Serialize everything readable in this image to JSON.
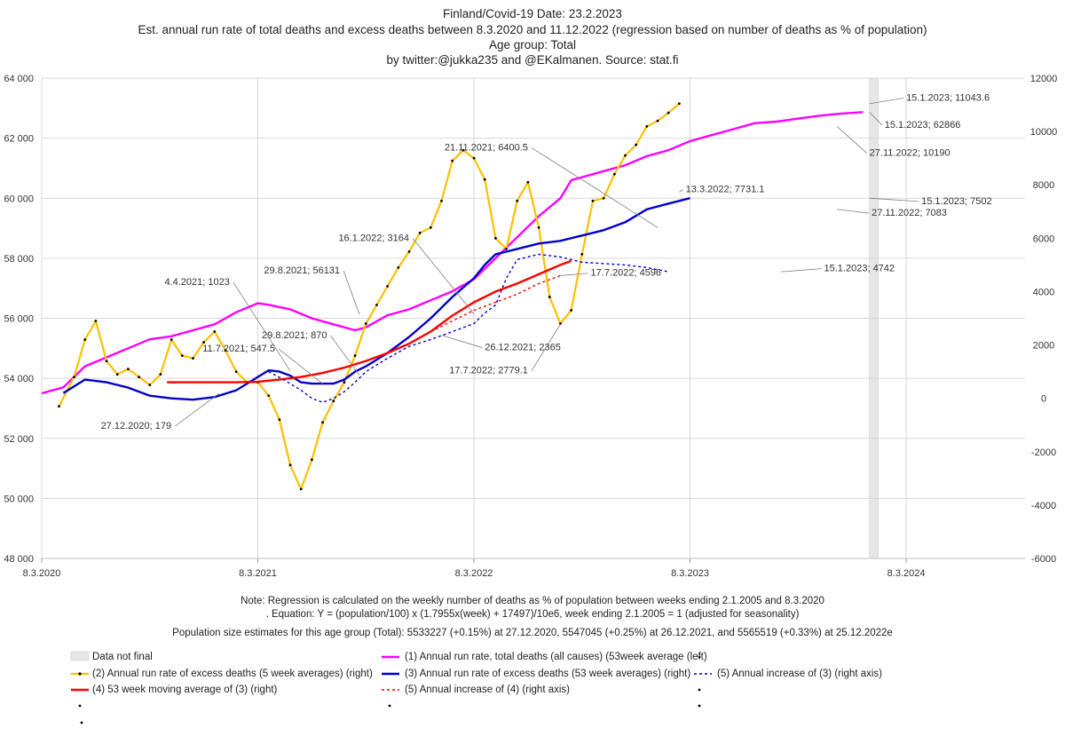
{
  "titles": {
    "line1": "Finland/Covid-19  Date: 23.2.2023",
    "line2": "Est. annual run rate of total deaths and excess deaths between 8.3.2020 and 11.12.2022 (regression based on number of deaths as % of population)",
    "line3": "Age group: Total",
    "line4": "by twitter:@jukka235  and @EKalmanen. Source: stat.fi"
  },
  "notes": {
    "line1": "Note: Regression is calculated on the weekly number of deaths as % of population between weeks ending 2.1.2005 and 8.3.2020",
    "line2": ". Equation: Y = (population/100) x (1.7955x(week) + 17497)/10e6, week ending 2.1.2005 = 1 (adjusted for seasonality)",
    "line3": "Population size estimates for this age group (Total): 5533227 (+0.15%) at 27.12.2020, 5547045 (+0.25%) at 26.12.2021, and 5565519 (+0.33%) at 25.12.2022e"
  },
  "colors": {
    "magenta": "#ff00ff",
    "orange": "#ffc000",
    "blue": "#0000cc",
    "red": "#ff0000",
    "grid": "#d9d9d9",
    "band": "#e6e6e6"
  },
  "legend": {
    "data_not_final": "Data not final",
    "s1": "(1) Annual run rate, total deaths (all causes) (53week average (left)",
    "s2": "(2) Annual run rate of excess deaths (5 week averages) (right)",
    "s3": "(3) Annual run rate of excess deaths (53 week averages) (right)",
    "s4": "(4) 53 week moving average of (3) (right)",
    "s5a": "(5)  Annual increase of (3) (right axis)",
    "s5b": "(5)  Annual increase of (4) (right axis)"
  },
  "chart_data": {
    "type": "line",
    "title": "Est. annual run rate of total deaths and excess deaths between 8.3.2020 and 11.12.2022",
    "x_tick_labels": [
      "8.3.2020",
      "8.3.2021",
      "8.3.2022",
      "8.3.2023",
      "8.3.2024"
    ],
    "x_range": [
      0,
      4.55
    ],
    "y_left": {
      "range": [
        48000,
        64000
      ],
      "ticks": [
        48000,
        50000,
        52000,
        54000,
        56000,
        58000,
        60000,
        62000,
        64000
      ],
      "tick_labels": [
        "48 000",
        "50 000",
        "52 000",
        "54 000",
        "56 000",
        "58 000",
        "60 000",
        "62 000",
        "64 000"
      ]
    },
    "y_right": {
      "range": [
        -6000,
        12000
      ],
      "ticks": [
        -6000,
        -4000,
        -2000,
        0,
        2000,
        4000,
        6000,
        8000,
        10000,
        12000
      ],
      "tick_labels": [
        "-6000",
        "-4000",
        "-2000",
        "0",
        "2000",
        "4000",
        "6000",
        "8000",
        "10000",
        "12000"
      ]
    },
    "data_not_final_band": [
      3.83,
      3.87
    ],
    "series": [
      {
        "name": "(1) Annual run rate, total deaths (all causes) (53week average (left)",
        "axis": "left",
        "color": "#ff00ff",
        "style": "solid",
        "points": [
          [
            0,
            53500
          ],
          [
            0.1,
            53700
          ],
          [
            0.2,
            54400
          ],
          [
            0.3,
            54700
          ],
          [
            0.4,
            55000
          ],
          [
            0.5,
            55300
          ],
          [
            0.6,
            55400
          ],
          [
            0.7,
            55600
          ],
          [
            0.8,
            55800
          ],
          [
            0.9,
            56200
          ],
          [
            1.0,
            56500
          ],
          [
            1.05,
            56450
          ],
          [
            1.15,
            56300
          ],
          [
            1.25,
            56000
          ],
          [
            1.35,
            55800
          ],
          [
            1.45,
            55600
          ],
          [
            1.5,
            55700
          ],
          [
            1.55,
            55900
          ],
          [
            1.6,
            56100
          ],
          [
            1.7,
            56300
          ],
          [
            1.8,
            56600
          ],
          [
            1.9,
            56900
          ],
          [
            2.0,
            57300
          ],
          [
            2.1,
            58000
          ],
          [
            2.2,
            58700
          ],
          [
            2.3,
            59400
          ],
          [
            2.4,
            60000
          ],
          [
            2.45,
            60600
          ],
          [
            2.5,
            60700
          ],
          [
            2.6,
            60900
          ],
          [
            2.7,
            61100
          ],
          [
            2.8,
            61400
          ],
          [
            2.9,
            61600
          ],
          [
            3.0,
            61900
          ],
          [
            3.1,
            62100
          ],
          [
            3.2,
            62300
          ],
          [
            3.3,
            62500
          ],
          [
            3.4,
            62550
          ],
          [
            3.5,
            62650
          ],
          [
            3.6,
            62750
          ],
          [
            3.7,
            62820
          ],
          [
            3.8,
            62866
          ]
        ]
      },
      {
        "name": "(2) Annual run rate of excess deaths (5 week averages) (right)",
        "axis": "right",
        "color": "#ffc000",
        "style": "markers",
        "points": [
          [
            0.08,
            -300
          ],
          [
            0.15,
            800
          ],
          [
            0.2,
            2200
          ],
          [
            0.25,
            2900
          ],
          [
            0.3,
            1400
          ],
          [
            0.35,
            900
          ],
          [
            0.4,
            1100
          ],
          [
            0.45,
            800
          ],
          [
            0.5,
            500
          ],
          [
            0.55,
            900
          ],
          [
            0.6,
            2200
          ],
          [
            0.65,
            1600
          ],
          [
            0.7,
            1500
          ],
          [
            0.75,
            2100
          ],
          [
            0.8,
            2500
          ],
          [
            0.85,
            1800
          ],
          [
            0.9,
            1000
          ],
          [
            0.95,
            600
          ],
          [
            1.0,
            600
          ],
          [
            1.05,
            100
          ],
          [
            1.1,
            -800
          ],
          [
            1.15,
            -2500
          ],
          [
            1.2,
            -3400
          ],
          [
            1.25,
            -2300
          ],
          [
            1.3,
            -900
          ],
          [
            1.35,
            -100
          ],
          [
            1.4,
            600
          ],
          [
            1.45,
            1600
          ],
          [
            1.5,
            2800
          ],
          [
            1.55,
            3500
          ],
          [
            1.6,
            4200
          ],
          [
            1.65,
            4900
          ],
          [
            1.7,
            5500
          ],
          [
            1.75,
            6200
          ],
          [
            1.8,
            6400
          ],
          [
            1.85,
            7400
          ],
          [
            1.9,
            8900
          ],
          [
            1.95,
            9300
          ],
          [
            2.0,
            9000
          ],
          [
            2.05,
            8200
          ],
          [
            2.1,
            6000
          ],
          [
            2.15,
            5600
          ],
          [
            2.2,
            7400
          ],
          [
            2.25,
            8100
          ],
          [
            2.3,
            6400
          ],
          [
            2.35,
            3800
          ],
          [
            2.4,
            2800
          ],
          [
            2.45,
            3300
          ],
          [
            2.5,
            5400
          ],
          [
            2.55,
            7400
          ],
          [
            2.6,
            7500
          ],
          [
            2.65,
            8400
          ],
          [
            2.7,
            9100
          ],
          [
            2.75,
            9500
          ],
          [
            2.8,
            10190
          ],
          [
            2.85,
            10400
          ],
          [
            2.9,
            10700
          ],
          [
            2.95,
            11043.6
          ]
        ]
      },
      {
        "name": "(3) Annual run rate of excess deaths (53 week averages) (right)",
        "axis": "right",
        "color": "#0000cc",
        "style": "solid",
        "points": [
          [
            0.1,
            200
          ],
          [
            0.2,
            700
          ],
          [
            0.3,
            600
          ],
          [
            0.4,
            400
          ],
          [
            0.5,
            100
          ],
          [
            0.6,
            0
          ],
          [
            0.7,
            -50
          ],
          [
            0.8,
            50
          ],
          [
            0.9,
            300
          ],
          [
            1.0,
            800
          ],
          [
            1.05,
            1050
          ],
          [
            1.1,
            1000
          ],
          [
            1.15,
            850
          ],
          [
            1.2,
            600
          ],
          [
            1.25,
            550
          ],
          [
            1.3,
            550
          ],
          [
            1.35,
            550
          ],
          [
            1.4,
            700
          ],
          [
            1.45,
            1000
          ],
          [
            1.5,
            1200
          ],
          [
            1.6,
            1700
          ],
          [
            1.7,
            2300
          ],
          [
            1.8,
            3000
          ],
          [
            1.9,
            3800
          ],
          [
            2.0,
            4500
          ],
          [
            2.05,
            5000
          ],
          [
            2.1,
            5400
          ],
          [
            2.2,
            5600
          ],
          [
            2.3,
            5800
          ],
          [
            2.4,
            5900
          ],
          [
            2.5,
            6100
          ],
          [
            2.6,
            6300
          ],
          [
            2.7,
            6600
          ],
          [
            2.8,
            7083
          ],
          [
            2.9,
            7300
          ],
          [
            3.0,
            7502
          ]
        ]
      },
      {
        "name": "(4) 53 week moving average of (3) (right)",
        "axis": "right",
        "color": "#ff0000",
        "style": "solid",
        "points": [
          [
            0.58,
            600
          ],
          [
            0.7,
            600
          ],
          [
            0.8,
            600
          ],
          [
            0.9,
            600
          ],
          [
            1.0,
            620
          ],
          [
            1.1,
            700
          ],
          [
            1.2,
            800
          ],
          [
            1.3,
            950
          ],
          [
            1.4,
            1150
          ],
          [
            1.5,
            1400
          ],
          [
            1.6,
            1700
          ],
          [
            1.7,
            2050
          ],
          [
            1.8,
            2500
          ],
          [
            1.9,
            3100
          ],
          [
            2.0,
            3600
          ],
          [
            2.1,
            4000
          ],
          [
            2.2,
            4300
          ],
          [
            2.3,
            4650
          ],
          [
            2.4,
            5000
          ],
          [
            2.45,
            5150
          ]
        ]
      },
      {
        "name": "(5)  Annual increase of (3) (right axis)",
        "axis": "right",
        "color": "#0000cc",
        "style": "dashed",
        "points": [
          [
            1.05,
            1000
          ],
          [
            1.12,
            700
          ],
          [
            1.2,
            300
          ],
          [
            1.25,
            0
          ],
          [
            1.3,
            -150
          ],
          [
            1.35,
            0
          ],
          [
            1.4,
            250
          ],
          [
            1.45,
            600
          ],
          [
            1.5,
            1000
          ],
          [
            1.6,
            1500
          ],
          [
            1.7,
            1950
          ],
          [
            1.8,
            2200
          ],
          [
            1.9,
            2500
          ],
          [
            2.0,
            2800
          ],
          [
            2.05,
            3200
          ],
          [
            2.1,
            3500
          ],
          [
            2.15,
            4500
          ],
          [
            2.2,
            5200
          ],
          [
            2.3,
            5400
          ],
          [
            2.4,
            5300
          ],
          [
            2.5,
            5100
          ],
          [
            2.6,
            5050
          ],
          [
            2.7,
            5000
          ],
          [
            2.8,
            4900
          ],
          [
            2.9,
            4742
          ]
        ]
      },
      {
        "name": "(5)  Annual increase of (4) (right axis)",
        "axis": "right",
        "color": "#ff0000",
        "style": "dashed",
        "points": [
          [
            1.8,
            2500
          ],
          [
            1.9,
            2900
          ],
          [
            2.0,
            3300
          ],
          [
            2.1,
            3600
          ],
          [
            2.2,
            3900
          ],
          [
            2.3,
            4300
          ],
          [
            2.4,
            4600
          ]
        ]
      }
    ],
    "annotations": [
      {
        "text": "15.1.2023; 11043.6",
        "axis": "right",
        "point": [
          3.83,
          11043.6
        ],
        "label": [
          4.0,
          11150
        ]
      },
      {
        "text": "15.1.2023; 62866",
        "axis": "left",
        "point": [
          3.83,
          62866
        ],
        "label": [
          3.9,
          62350
        ]
      },
      {
        "text": "27.11.2022; 10190",
        "axis": "right",
        "point": [
          3.68,
          10190
        ],
        "label": [
          3.83,
          9090
        ]
      },
      {
        "text": "21.11.2021; 6400.5",
        "axis": "right",
        "point": [
          2.85,
          6400.5
        ],
        "label": [
          2.25,
          9290
        ]
      },
      {
        "text": "13.3.2022; 7731.1",
        "axis": "right",
        "point": [
          2.95,
          7731.1
        ],
        "label": [
          2.98,
          7720
        ]
      },
      {
        "text": "15.1.2023; 7502",
        "axis": "right",
        "point": [
          3.83,
          7502
        ],
        "label": [
          4.07,
          7280
        ]
      },
      {
        "text": "27.11.2022; 7083",
        "axis": "right",
        "point": [
          3.68,
          7083
        ],
        "label": [
          3.84,
          6840
        ]
      },
      {
        "text": "16.1.2022; 3164",
        "axis": "right",
        "point": [
          2.0,
          3164
        ],
        "label": [
          1.7,
          5900
        ]
      },
      {
        "text": "29.8.2021; 56131",
        "axis": "left",
        "point": [
          1.47,
          56131
        ],
        "label": [
          1.38,
          57500
        ]
      },
      {
        "text": "4.4.2021; 1023",
        "axis": "right",
        "point": [
          1.15,
          1023
        ],
        "label": [
          0.87,
          4250
        ]
      },
      {
        "text": "17.7.2022; 4596",
        "axis": "right",
        "point": [
          2.4,
          4596
        ],
        "label": [
          2.54,
          4590
        ]
      },
      {
        "text": "15.1.2023; 4742",
        "axis": "right",
        "point": [
          3.42,
          4742
        ],
        "label": [
          3.62,
          4760
        ]
      },
      {
        "text": "29.8.2021; 870",
        "axis": "right",
        "point": [
          1.47,
          870
        ],
        "label": [
          1.32,
          2250
        ]
      },
      {
        "text": "11.7.2021; 547.5",
        "axis": "right",
        "point": [
          1.3,
          547.5
        ],
        "label": [
          1.08,
          1750
        ]
      },
      {
        "text": "26.12.2021; 2365",
        "axis": "right",
        "point": [
          1.85,
          2365
        ],
        "label": [
          2.05,
          1800
        ]
      },
      {
        "text": "17.7.2022; 2779.1",
        "axis": "right",
        "point": [
          2.4,
          2779.1
        ],
        "label": [
          2.25,
          930
        ]
      },
      {
        "text": "27.12.2020; 179",
        "axis": "right",
        "point": [
          0.82,
          179
        ],
        "label": [
          0.6,
          -1150
        ]
      }
    ]
  }
}
